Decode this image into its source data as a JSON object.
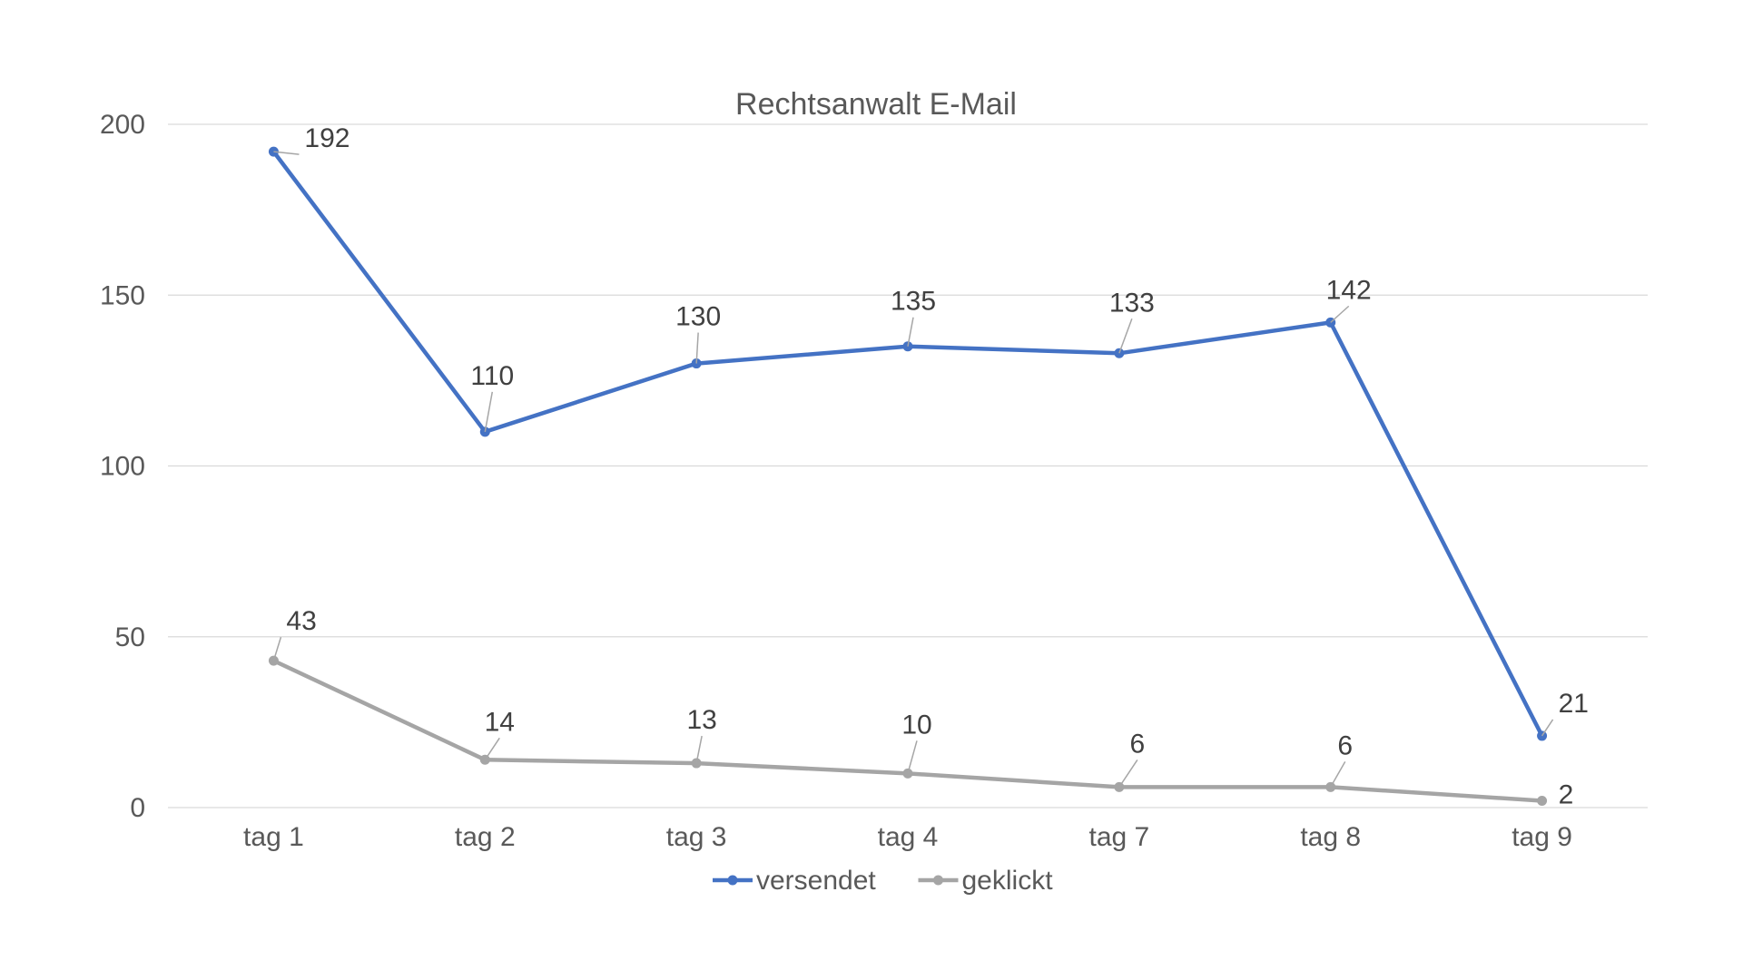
{
  "chart_data": {
    "type": "line",
    "title": "Rechtsanwalt E-Mail",
    "xlabel": "",
    "ylabel": "",
    "categories": [
      "tag 1",
      "tag 2",
      "tag 3",
      "tag 4",
      "tag 7",
      "tag 8",
      "tag 9"
    ],
    "ylim": [
      0,
      200
    ],
    "yticks": [
      0,
      50,
      100,
      150,
      200
    ],
    "grid": true,
    "legend_position": "bottom",
    "series": [
      {
        "name": "versendet",
        "color": "#4472c4",
        "values": [
          192,
          110,
          130,
          135,
          133,
          142,
          21
        ]
      },
      {
        "name": "geklickt",
        "color": "#a5a5a5",
        "values": [
          43,
          14,
          13,
          10,
          6,
          6,
          2
        ]
      }
    ]
  }
}
